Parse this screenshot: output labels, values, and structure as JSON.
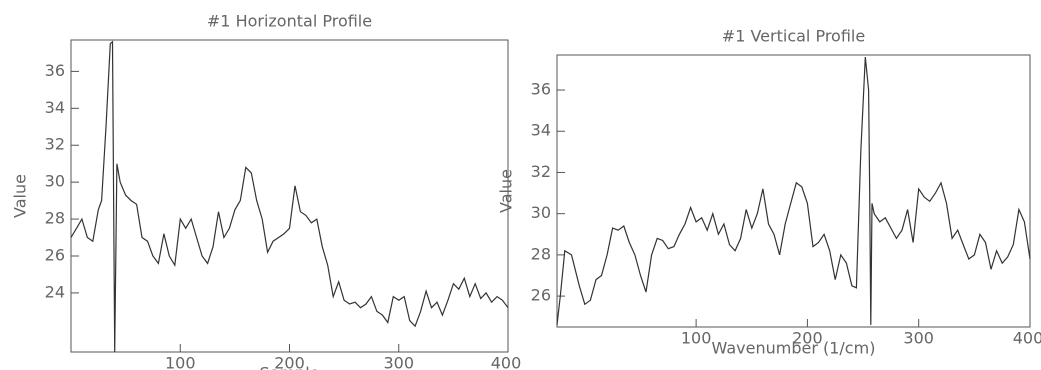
{
  "chart_data": [
    {
      "type": "line",
      "title": "#1 Horizontal Profile",
      "xlabel": "Sample",
      "ylabel": "Value",
      "color": "#333333",
      "x": [
        0,
        5,
        10,
        15,
        20,
        25,
        28,
        32,
        36,
        38,
        40,
        42,
        45,
        50,
        55,
        60,
        65,
        70,
        75,
        80,
        85,
        90,
        95,
        100,
        105,
        110,
        115,
        120,
        125,
        130,
        135,
        140,
        145,
        150,
        155,
        160,
        165,
        170,
        175,
        180,
        185,
        190,
        195,
        200,
        205,
        210,
        215,
        220,
        225,
        230,
        235,
        240,
        245,
        250,
        255,
        260,
        265,
        270,
        275,
        280,
        285,
        290,
        295,
        300,
        305,
        310,
        315,
        320,
        325,
        330,
        335,
        340,
        345,
        350,
        355,
        360,
        365,
        370,
        375,
        380,
        385,
        390,
        395,
        400
      ],
      "series": [
        {
          "name": "Horizontal",
          "color": "#333333",
          "values": [
            27.0,
            27.5,
            28.0,
            27.0,
            26.8,
            28.5,
            29.0,
            33.0,
            37.5,
            37.6,
            20.8,
            31.0,
            30.0,
            29.3,
            29.0,
            28.8,
            27.0,
            26.8,
            26.0,
            25.6,
            27.2,
            26.0,
            25.5,
            28.0,
            27.5,
            28.0,
            27.0,
            26.0,
            25.6,
            26.5,
            28.4,
            27.0,
            27.5,
            28.5,
            29.0,
            30.8,
            30.5,
            29.0,
            28.0,
            26.2,
            26.8,
            27.0,
            27.2,
            27.5,
            29.8,
            28.4,
            28.2,
            27.8,
            28.0,
            26.5,
            25.5,
            23.8,
            24.6,
            23.6,
            23.4,
            23.5,
            23.2,
            23.4,
            23.8,
            23.0,
            22.8,
            22.4,
            23.8,
            23.6,
            23.8,
            22.5,
            22.2,
            23.0,
            24.1,
            23.2,
            23.5,
            22.8,
            23.6,
            24.5,
            24.2,
            24.8,
            23.8,
            24.5,
            23.7,
            24.0,
            23.5,
            23.8,
            23.6,
            23.2
          ]
        }
      ],
      "xlim": [
        0,
        400
      ],
      "xticks": [
        100,
        200,
        300,
        400
      ],
      "ylim": [
        20.8,
        37.7
      ],
      "yticks": [
        24,
        26,
        28,
        30,
        32,
        34,
        36
      ]
    },
    {
      "type": "line",
      "title": "#1 Vertical Profile",
      "xlabel": "Wavenumber (1/cm)",
      "ylabel": "Value",
      "color": "#333333",
      "x": [
        -25,
        -22,
        -18,
        -12,
        -5,
        0,
        5,
        10,
        15,
        20,
        25,
        30,
        35,
        40,
        45,
        50,
        55,
        60,
        65,
        70,
        75,
        80,
        85,
        90,
        95,
        100,
        105,
        110,
        115,
        120,
        125,
        130,
        135,
        140,
        145,
        150,
        155,
        160,
        165,
        170,
        175,
        180,
        185,
        190,
        195,
        200,
        205,
        210,
        215,
        220,
        225,
        230,
        235,
        240,
        244,
        248,
        252,
        255,
        256,
        257,
        258,
        260,
        265,
        270,
        275,
        280,
        285,
        290,
        295,
        300,
        305,
        310,
        315,
        320,
        325,
        330,
        335,
        340,
        345,
        350,
        355,
        360,
        365,
        370,
        375,
        380,
        385,
        390,
        395,
        400
      ],
      "series": [
        {
          "name": "Vertical",
          "color": "#333333",
          "values": [
            24.6,
            26.0,
            28.2,
            28.0,
            26.5,
            25.6,
            25.8,
            26.8,
            27.0,
            28.0,
            29.3,
            29.2,
            29.4,
            28.6,
            28.0,
            27.0,
            26.2,
            28.0,
            28.8,
            28.7,
            28.3,
            28.4,
            29.0,
            29.5,
            30.3,
            29.6,
            29.8,
            29.2,
            30.0,
            29.0,
            29.5,
            28.5,
            28.2,
            28.8,
            30.2,
            29.3,
            30.0,
            31.2,
            29.5,
            29.0,
            28.0,
            29.5,
            30.5,
            31.5,
            31.3,
            30.5,
            28.4,
            28.6,
            29.0,
            28.2,
            26.8,
            28.0,
            27.6,
            26.5,
            26.4,
            33.0,
            37.6,
            36.0,
            31.0,
            24.6,
            30.5,
            30.0,
            29.6,
            29.8,
            29.3,
            28.8,
            29.2,
            30.2,
            28.6,
            31.2,
            30.8,
            30.6,
            31.0,
            31.5,
            30.5,
            28.8,
            29.2,
            28.5,
            27.8,
            28.0,
            29.0,
            28.6,
            27.3,
            28.2,
            27.6,
            27.9,
            28.5,
            30.2,
            29.6,
            27.8
          ]
        }
      ],
      "xlim": [
        -25,
        400
      ],
      "xticks": [
        100,
        200,
        300,
        400
      ],
      "ylim": [
        24.5,
        37.7
      ],
      "yticks": [
        26,
        28,
        30,
        32,
        34,
        36
      ]
    }
  ]
}
